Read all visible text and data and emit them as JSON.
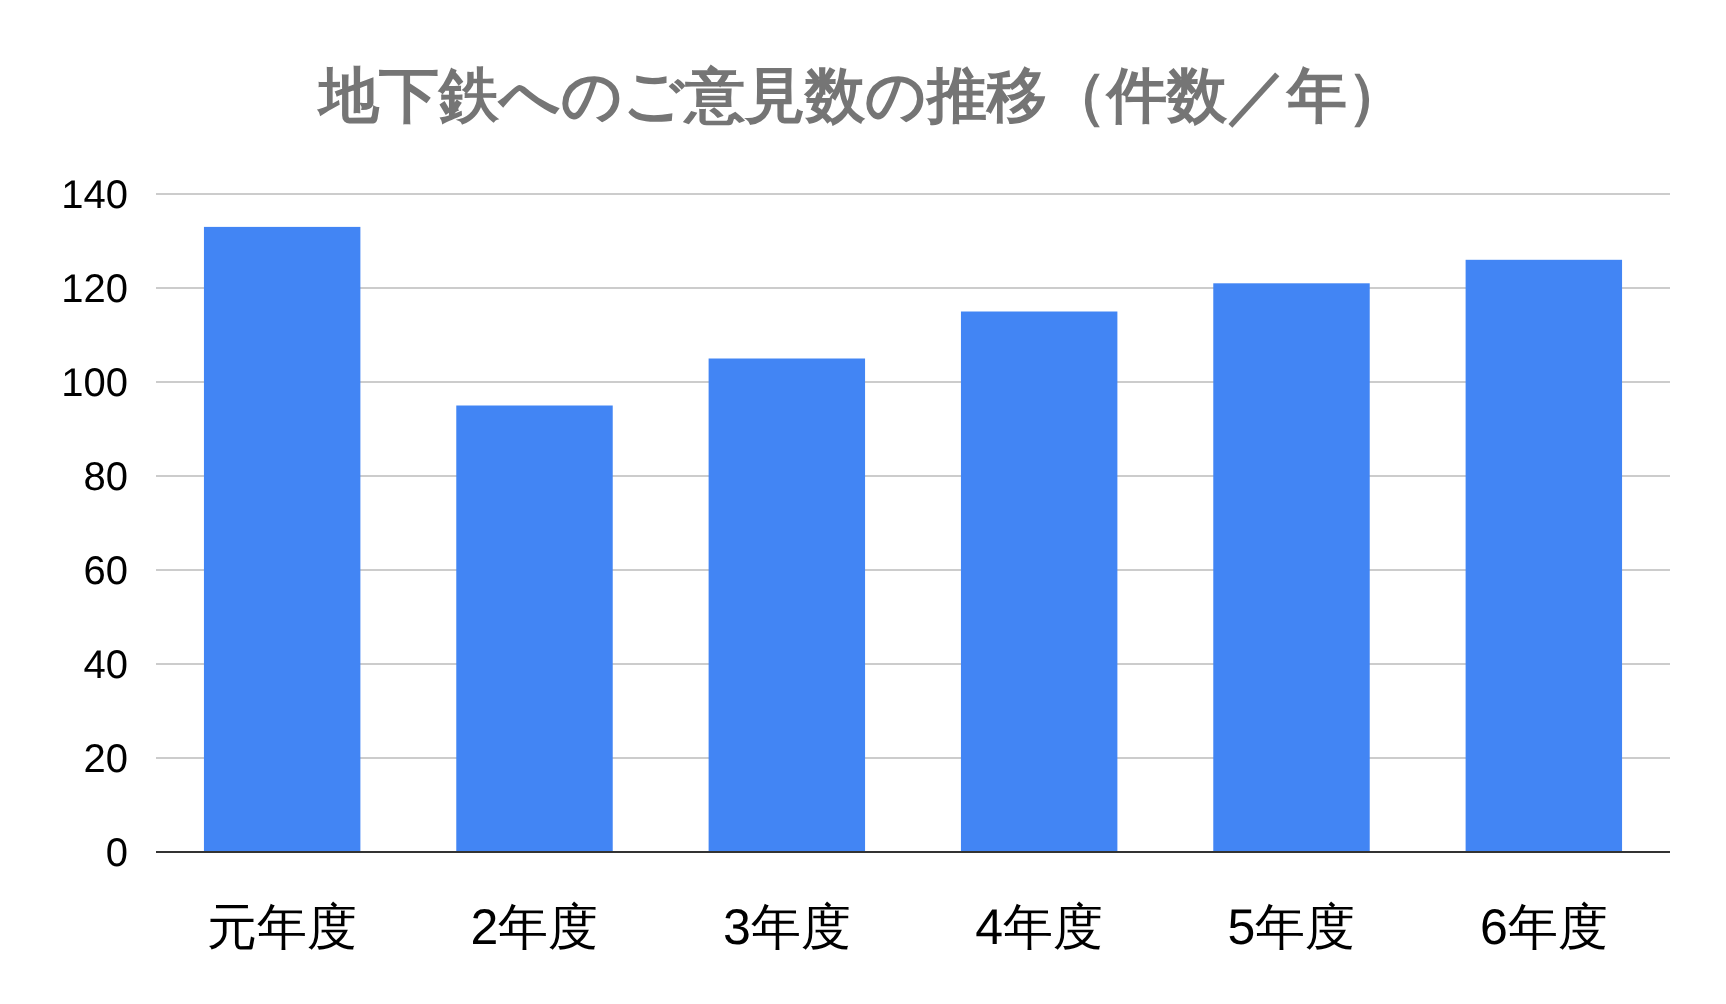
{
  "chart_data": {
    "type": "bar",
    "title": "地下鉄へのご意見数の推移（件数／年）",
    "categories": [
      "元年度",
      "2年度",
      "3年度",
      "4年度",
      "5年度",
      "6年度"
    ],
    "values": [
      133,
      95,
      105,
      115,
      121,
      126
    ],
    "color": "#4285f4",
    "ylim": [
      0,
      140
    ],
    "yticks": [
      0,
      20,
      40,
      60,
      80,
      100,
      120,
      140
    ],
    "grid": "y"
  }
}
